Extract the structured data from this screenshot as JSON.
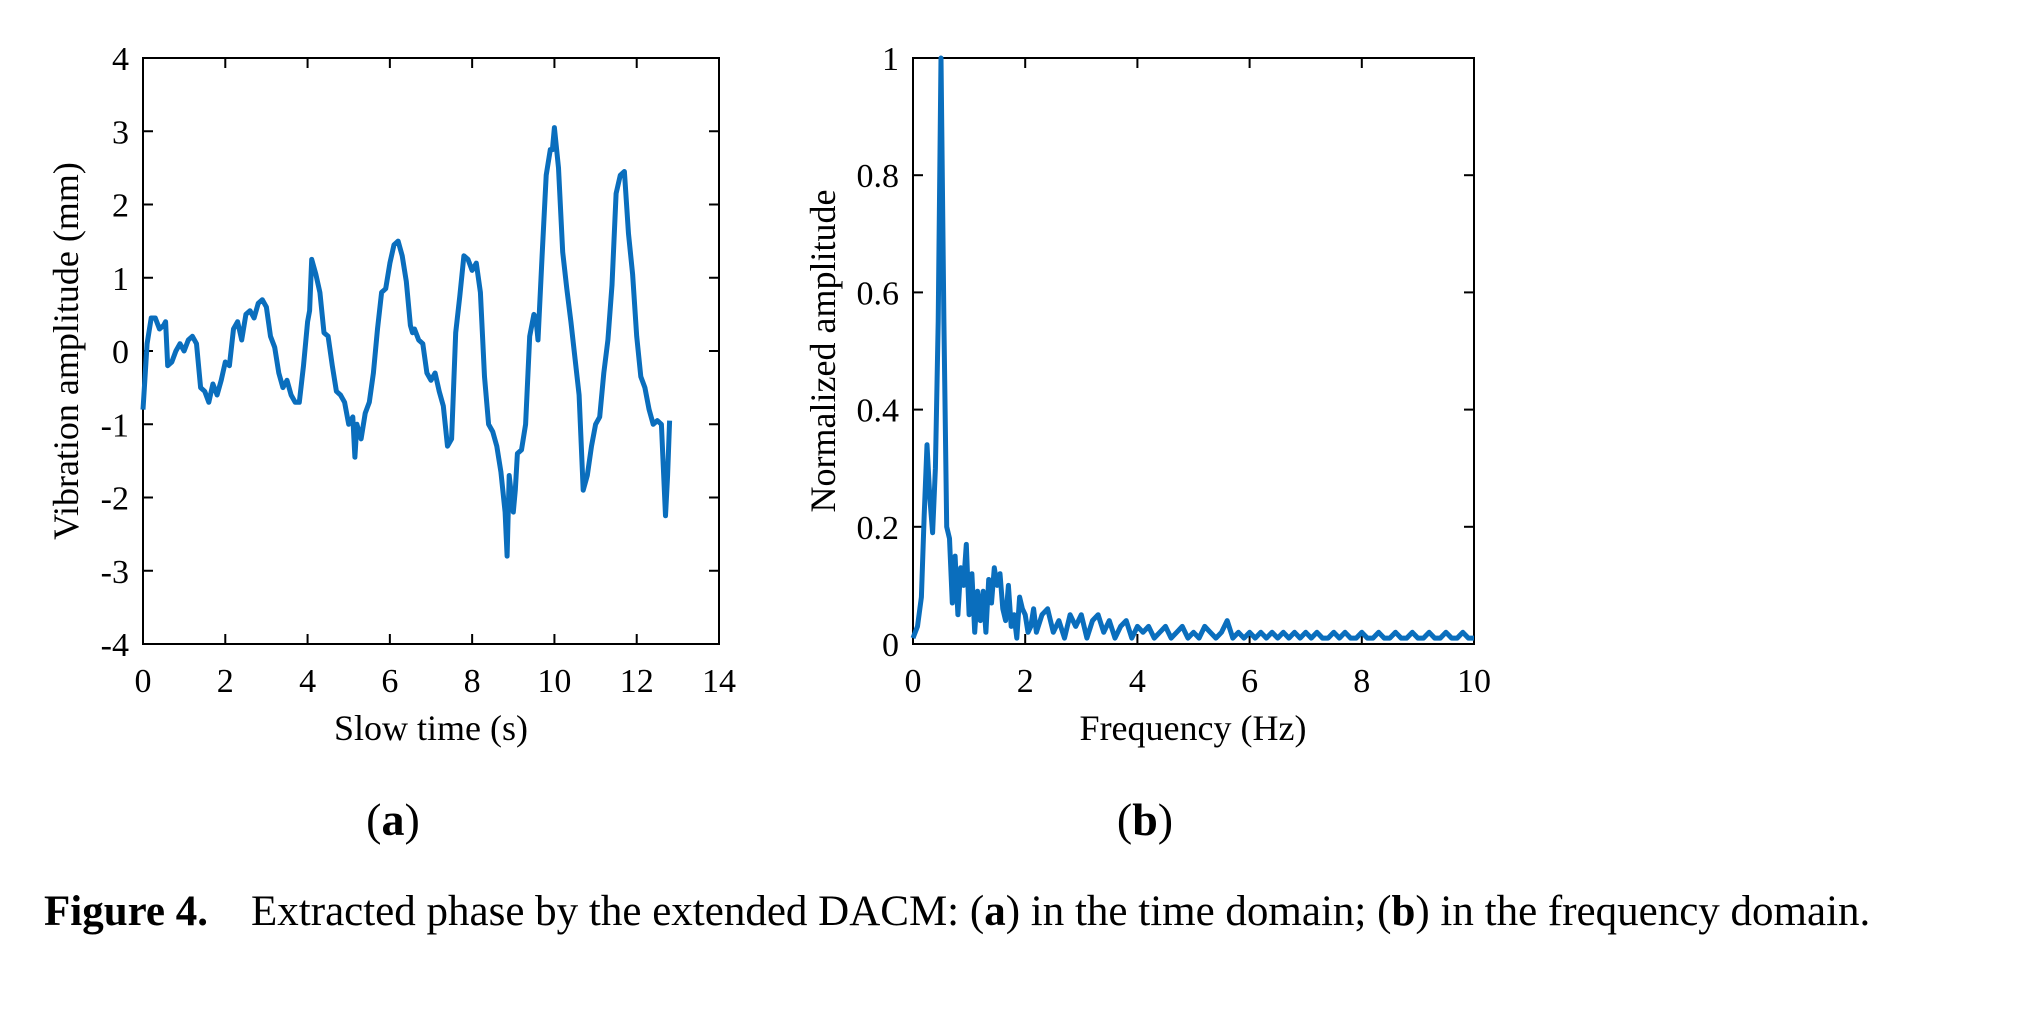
{
  "chart_data": [
    {
      "type": "line",
      "panel": "a",
      "xlabel": "Slow time (s)",
      "ylabel": "Vibration amplitude (mm)",
      "xlim": [
        0,
        14
      ],
      "ylim": [
        -4,
        4
      ],
      "xticks": [
        0,
        2,
        4,
        6,
        8,
        10,
        12,
        14
      ],
      "yticks": [
        -4,
        -3,
        -2,
        -1,
        0,
        1,
        2,
        3,
        4
      ],
      "color": "#0a6ebd",
      "series": [
        {
          "x": [
            0,
            0.1,
            0.2,
            0.3,
            0.4,
            0.5,
            0.55,
            0.6,
            0.7,
            0.8,
            0.9,
            1.0,
            1.1,
            1.2,
            1.3,
            1.4,
            1.5,
            1.6,
            1.7,
            1.8,
            1.9,
            2.0,
            2.1,
            2.2,
            2.3,
            2.4,
            2.5,
            2.6,
            2.7,
            2.8,
            2.9,
            3.0,
            3.1,
            3.2,
            3.3,
            3.4,
            3.5,
            3.6,
            3.7,
            3.8,
            3.9,
            4.0,
            4.05,
            4.1,
            4.2,
            4.3,
            4.4,
            4.5,
            4.6,
            4.7,
            4.8,
            4.9,
            5.0,
            5.1,
            5.15,
            5.2,
            5.3,
            5.4,
            5.5,
            5.6,
            5.7,
            5.8,
            5.9,
            6.0,
            6.1,
            6.2,
            6.3,
            6.4,
            6.5,
            6.55,
            6.6,
            6.7,
            6.8,
            6.9,
            7.0,
            7.1,
            7.2,
            7.3,
            7.4,
            7.5,
            7.6,
            7.7,
            7.8,
            7.9,
            8.0,
            8.1,
            8.2,
            8.3,
            8.4,
            8.5,
            8.6,
            8.7,
            8.8,
            8.85,
            8.9,
            9.0,
            9.05,
            9.1,
            9.2,
            9.3,
            9.4,
            9.5,
            9.55,
            9.6,
            9.7,
            9.8,
            9.9,
            9.95,
            10.0,
            10.1,
            10.2,
            10.3,
            10.4,
            10.5,
            10.6,
            10.7,
            10.8,
            10.9,
            11.0,
            11.1,
            11.2,
            11.3,
            11.4,
            11.5,
            11.6,
            11.7,
            11.8,
            11.9,
            12.0,
            12.1,
            12.2,
            12.3,
            12.4,
            12.5,
            12.6,
            12.7,
            12.75,
            12.8
          ],
          "y": [
            -0.8,
            0.1,
            0.45,
            0.45,
            0.3,
            0.35,
            0.4,
            -0.2,
            -0.15,
            0.0,
            0.1,
            0.0,
            0.15,
            0.2,
            0.1,
            -0.5,
            -0.55,
            -0.7,
            -0.45,
            -0.6,
            -0.4,
            -0.15,
            -0.2,
            0.3,
            0.4,
            0.15,
            0.5,
            0.55,
            0.45,
            0.65,
            0.7,
            0.6,
            0.2,
            0.05,
            -0.3,
            -0.5,
            -0.4,
            -0.6,
            -0.7,
            -0.7,
            -0.2,
            0.4,
            0.55,
            1.25,
            1.05,
            0.8,
            0.25,
            0.2,
            -0.2,
            -0.55,
            -0.6,
            -0.7,
            -1.0,
            -0.9,
            -1.45,
            -1.0,
            -1.2,
            -0.85,
            -0.7,
            -0.3,
            0.3,
            0.8,
            0.85,
            1.2,
            1.45,
            1.5,
            1.3,
            0.95,
            0.35,
            0.25,
            0.3,
            0.15,
            0.1,
            -0.3,
            -0.4,
            -0.3,
            -0.55,
            -0.75,
            -1.3,
            -1.2,
            0.25,
            0.75,
            1.3,
            1.25,
            1.1,
            1.2,
            0.8,
            -0.35,
            -1.0,
            -1.1,
            -1.3,
            -1.65,
            -2.2,
            -2.8,
            -1.7,
            -2.2,
            -1.9,
            -1.4,
            -1.35,
            -1.0,
            0.2,
            0.5,
            0.45,
            0.15,
            1.3,
            2.4,
            2.75,
            2.75,
            3.05,
            2.5,
            1.35,
            0.85,
            0.4,
            -0.1,
            -0.6,
            -1.9,
            -1.7,
            -1.3,
            -1.0,
            -0.9,
            -0.3,
            0.15,
            0.9,
            2.15,
            2.4,
            2.45,
            1.6,
            1.05,
            0.2,
            -0.35,
            -0.5,
            -0.8,
            -1.0,
            -0.95,
            -1.0,
            -2.25,
            -1.7,
            -0.95
          ]
        }
      ],
      "panel_label_open": "(",
      "panel_label_letter": "a",
      "panel_label_close": ")"
    },
    {
      "type": "line",
      "panel": "b",
      "xlabel": "Frequency (Hz)",
      "ylabel": "Normalized amplitude",
      "xlim": [
        0,
        10
      ],
      "ylim": [
        0,
        1
      ],
      "xticks": [
        0,
        2,
        4,
        6,
        8,
        10
      ],
      "yticks": [
        0,
        0.2,
        0.4,
        0.6,
        0.8,
        1
      ],
      "color": "#0a6ebd",
      "series": [
        {
          "x": [
            0,
            0.08,
            0.15,
            0.2,
            0.25,
            0.3,
            0.35,
            0.4,
            0.45,
            0.5,
            0.55,
            0.6,
            0.65,
            0.7,
            0.75,
            0.8,
            0.85,
            0.9,
            0.95,
            1.0,
            1.05,
            1.1,
            1.15,
            1.2,
            1.25,
            1.3,
            1.35,
            1.4,
            1.45,
            1.5,
            1.55,
            1.6,
            1.65,
            1.7,
            1.75,
            1.8,
            1.85,
            1.9,
            1.95,
            2.0,
            2.05,
            2.1,
            2.15,
            2.2,
            2.3,
            2.4,
            2.5,
            2.6,
            2.7,
            2.8,
            2.9,
            3.0,
            3.1,
            3.2,
            3.3,
            3.4,
            3.5,
            3.6,
            3.7,
            3.8,
            3.9,
            4.0,
            4.1,
            4.2,
            4.3,
            4.4,
            4.5,
            4.6,
            4.7,
            4.8,
            4.9,
            5.0,
            5.1,
            5.2,
            5.3,
            5.4,
            5.5,
            5.6,
            5.7,
            5.8,
            5.9,
            6.0,
            6.1,
            6.2,
            6.3,
            6.4,
            6.5,
            6.6,
            6.7,
            6.8,
            6.9,
            7.0,
            7.1,
            7.2,
            7.3,
            7.4,
            7.5,
            7.6,
            7.7,
            7.8,
            7.9,
            8.0,
            8.1,
            8.2,
            8.3,
            8.4,
            8.5,
            8.6,
            8.7,
            8.8,
            8.9,
            9.0,
            9.1,
            9.2,
            9.3,
            9.4,
            9.5,
            9.6,
            9.7,
            9.8,
            9.9,
            10.0
          ],
          "y": [
            0.01,
            0.03,
            0.08,
            0.22,
            0.34,
            0.25,
            0.19,
            0.3,
            0.55,
            1.0,
            0.55,
            0.2,
            0.18,
            0.07,
            0.15,
            0.05,
            0.13,
            0.1,
            0.17,
            0.05,
            0.12,
            0.02,
            0.09,
            0.04,
            0.09,
            0.02,
            0.11,
            0.07,
            0.13,
            0.1,
            0.12,
            0.06,
            0.04,
            0.1,
            0.03,
            0.05,
            0.01,
            0.08,
            0.06,
            0.05,
            0.02,
            0.03,
            0.06,
            0.02,
            0.05,
            0.06,
            0.02,
            0.04,
            0.01,
            0.05,
            0.03,
            0.05,
            0.01,
            0.04,
            0.05,
            0.02,
            0.04,
            0.01,
            0.03,
            0.04,
            0.01,
            0.03,
            0.02,
            0.03,
            0.01,
            0.02,
            0.03,
            0.01,
            0.02,
            0.03,
            0.01,
            0.02,
            0.01,
            0.03,
            0.02,
            0.01,
            0.02,
            0.04,
            0.01,
            0.02,
            0.01,
            0.02,
            0.01,
            0.02,
            0.01,
            0.02,
            0.01,
            0.02,
            0.01,
            0.02,
            0.01,
            0.02,
            0.01,
            0.02,
            0.01,
            0.01,
            0.02,
            0.01,
            0.02,
            0.01,
            0.01,
            0.02,
            0.01,
            0.01,
            0.02,
            0.01,
            0.01,
            0.02,
            0.01,
            0.01,
            0.02,
            0.01,
            0.01,
            0.02,
            0.01,
            0.01,
            0.02,
            0.01,
            0.01,
            0.02,
            0.01,
            0.01
          ]
        }
      ],
      "panel_label_open": "(",
      "panel_label_letter": "b",
      "panel_label_close": ")"
    }
  ],
  "caption": {
    "label": "Figure 4.",
    "part1": "Extracted phase by the extended DACM: (",
    "a": "a",
    "part2": ") in the time domain; (",
    "b": "b",
    "part3": ") in the frequency domain."
  }
}
